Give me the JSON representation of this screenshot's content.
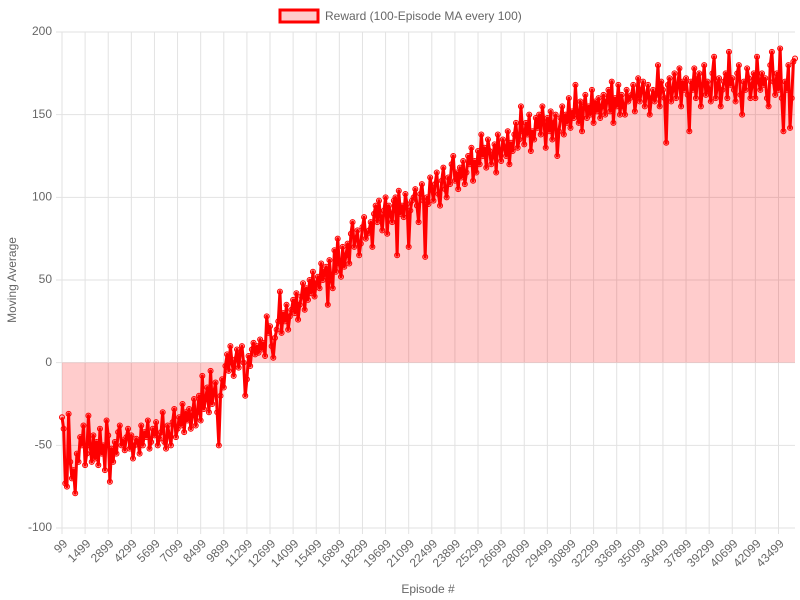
{
  "chart_data": {
    "type": "line",
    "legend_label": "Reward (100-Episode MA every 100)",
    "x_label": "Episode #",
    "y_label": "Moving Average",
    "color": "#ff0000",
    "fill_color": "rgba(255,0,0,0.2)",
    "fill": "origin",
    "grid": true,
    "legend": "top",
    "ylim": [
      -100,
      200
    ],
    "yticks": [
      -100,
      -50,
      0,
      50,
      100,
      150,
      200
    ],
    "categories": [
      "99",
      null,
      null,
      null,
      null,
      null,
      null,
      null,
      null,
      null,
      null,
      null,
      null,
      null,
      "1499",
      null,
      null,
      null,
      null,
      null,
      null,
      null,
      null,
      null,
      null,
      null,
      null,
      null,
      "2899",
      null,
      null,
      null,
      null,
      null,
      null,
      null,
      null,
      null,
      null,
      null,
      null,
      null,
      "4299",
      null,
      null,
      null,
      null,
      null,
      null,
      null,
      null,
      null,
      null,
      null,
      null,
      null,
      "5699",
      null,
      null,
      null,
      null,
      null,
      null,
      null,
      null,
      null,
      null,
      null,
      null,
      null,
      "7099",
      null,
      null,
      null,
      null,
      null,
      null,
      null,
      null,
      null,
      null,
      null,
      null,
      null,
      "8499",
      null,
      null,
      null,
      null,
      null,
      null,
      null,
      null,
      null,
      null,
      null,
      null,
      null,
      "9899",
      null,
      null,
      null,
      null,
      null,
      null,
      null,
      null,
      null,
      null,
      null,
      null,
      null,
      "11299",
      null,
      null,
      null,
      null,
      null,
      null,
      null,
      null,
      null,
      null,
      null,
      null,
      null,
      "12699",
      null,
      null,
      null,
      null,
      null,
      null,
      null,
      null,
      null,
      null,
      null,
      null,
      null,
      "14099",
      null,
      null,
      null,
      null,
      null,
      null,
      null,
      null,
      null,
      null,
      null,
      null,
      null,
      "15499",
      null,
      null,
      null,
      null,
      null,
      null,
      null,
      null,
      null,
      null,
      null,
      null,
      null,
      "16899",
      null,
      null,
      null,
      null,
      null,
      null,
      null,
      null,
      null,
      null,
      null,
      null,
      null,
      "18299",
      null,
      null,
      null,
      null,
      null,
      null,
      null,
      null,
      null,
      null,
      null,
      null,
      null,
      "19699",
      null,
      null,
      null,
      null,
      null,
      null,
      null,
      null,
      null,
      null,
      null,
      null,
      null,
      "21099",
      null,
      null,
      null,
      null,
      null,
      null,
      null,
      null,
      null,
      null,
      null,
      null,
      null,
      "22499",
      null,
      null,
      null,
      null,
      null,
      null,
      null,
      null,
      null,
      null,
      null,
      null,
      null,
      "23899",
      null,
      null,
      null,
      null,
      null,
      null,
      null,
      null,
      null,
      null,
      null,
      null,
      null,
      "25299",
      null,
      null,
      null,
      null,
      null,
      null,
      null,
      null,
      null,
      null,
      null,
      null,
      null,
      "26699",
      null,
      null,
      null,
      null,
      null,
      null,
      null,
      null,
      null,
      null,
      null,
      null,
      null,
      "28099",
      null,
      null,
      null,
      null,
      null,
      null,
      null,
      null,
      null,
      null,
      null,
      null,
      null,
      "29499",
      null,
      null,
      null,
      null,
      null,
      null,
      null,
      null,
      null,
      null,
      null,
      null,
      null,
      "30899",
      null,
      null,
      null,
      null,
      null,
      null,
      null,
      null,
      null,
      null,
      null,
      null,
      null,
      "32299",
      null,
      null,
      null,
      null,
      null,
      null,
      null,
      null,
      null,
      null,
      null,
      null,
      null,
      "33699",
      null,
      null,
      null,
      null,
      null,
      null,
      null,
      null,
      null,
      null,
      null,
      null,
      null,
      "35099",
      null,
      null,
      null,
      null,
      null,
      null,
      null,
      null,
      null,
      null,
      null,
      null,
      null,
      "36499",
      null,
      null,
      null,
      null,
      null,
      null,
      null,
      null,
      null,
      null,
      null,
      null,
      null,
      "37899",
      null,
      null,
      null,
      null,
      null,
      null,
      null,
      null,
      null,
      null,
      null,
      null,
      null,
      "39299",
      null,
      null,
      null,
      null,
      null,
      null,
      null,
      null,
      null,
      null,
      null,
      null,
      null,
      "40699",
      null,
      null,
      null,
      null,
      null,
      null,
      null,
      null,
      null,
      null,
      null,
      null,
      null,
      "42099",
      null,
      null,
      null,
      null,
      null,
      null,
      null,
      null,
      null,
      null,
      null,
      null,
      null,
      "43499",
      null,
      null,
      null,
      null,
      null,
      null,
      null,
      null,
      null,
      null
    ],
    "values": [
      -33,
      -40,
      -73,
      -75,
      -31,
      -60,
      -70,
      -65,
      -79,
      -55,
      -60,
      -45,
      -50,
      -38,
      -62,
      -55,
      -32,
      -50,
      -60,
      -44,
      -58,
      -48,
      -62,
      -40,
      -55,
      -50,
      -65,
      -35,
      -44,
      -72,
      -52,
      -60,
      -48,
      -55,
      -42,
      -38,
      -50,
      -47,
      -53,
      -45,
      -40,
      -52,
      -44,
      -58,
      -50,
      -46,
      -48,
      -55,
      -38,
      -50,
      -42,
      -45,
      -35,
      -52,
      -48,
      -40,
      -44,
      -36,
      -50,
      -46,
      -42,
      -30,
      -48,
      -52,
      -38,
      -44,
      -50,
      -36,
      -28,
      -45,
      -40,
      -33,
      -38,
      -25,
      -42,
      -30,
      -35,
      -28,
      -40,
      -32,
      -22,
      -38,
      -30,
      -20,
      -35,
      -8,
      -28,
      -22,
      -15,
      -30,
      -5,
      -25,
      -18,
      -12,
      -30,
      -50,
      -20,
      -10,
      -15,
      -2,
      5,
      -5,
      10,
      0,
      -8,
      2,
      8,
      -3,
      6,
      10,
      0,
      -20,
      -10,
      4,
      -2,
      8,
      12,
      5,
      10,
      6,
      14,
      8,
      12,
      4,
      28,
      18,
      22,
      10,
      3,
      15,
      20,
      25,
      43,
      18,
      30,
      25,
      35,
      20,
      28,
      32,
      38,
      30,
      42,
      26,
      35,
      40,
      48,
      32,
      45,
      38,
      50,
      42,
      55,
      40,
      48,
      52,
      45,
      60,
      50,
      55,
      58,
      35,
      62,
      50,
      45,
      68,
      55,
      75,
      60,
      52,
      70,
      58,
      65,
      72,
      60,
      78,
      85,
      70,
      75,
      80,
      65,
      72,
      82,
      88,
      75,
      78,
      80,
      85,
      70,
      90,
      95,
      85,
      98,
      88,
      80,
      92,
      100,
      78,
      95,
      90,
      85,
      98,
      100,
      65,
      104,
      90,
      95,
      88,
      102,
      96,
      70,
      92,
      98,
      100,
      105,
      95,
      85,
      102,
      108,
      98,
      64,
      100,
      96,
      112,
      105,
      98,
      108,
      115,
      102,
      95,
      110,
      118,
      105,
      100,
      112,
      108,
      120,
      125,
      110,
      115,
      105,
      118,
      112,
      122,
      108,
      115,
      125,
      120,
      130,
      110,
      122,
      115,
      128,
      120,
      138,
      125,
      130,
      118,
      135,
      128,
      120,
      125,
      132,
      115,
      138,
      128,
      122,
      135,
      130,
      125,
      140,
      120,
      133,
      128,
      138,
      145,
      130,
      135,
      155,
      140,
      132,
      145,
      138,
      150,
      128,
      140,
      135,
      148,
      142,
      150,
      138,
      155,
      145,
      130,
      148,
      140,
      152,
      135,
      145,
      150,
      125,
      140,
      148,
      155,
      138,
      150,
      145,
      160,
      142,
      152,
      148,
      168,
      150,
      145,
      158,
      140,
      155,
      162,
      148,
      155,
      150,
      165,
      145,
      158,
      152,
      160,
      148,
      155,
      162,
      150,
      158,
      165,
      152,
      170,
      145,
      160,
      155,
      168,
      150,
      162,
      155,
      150,
      165,
      158,
      160,
      162,
      168,
      152,
      160,
      172,
      158,
      165,
      170,
      155,
      162,
      168,
      150,
      160,
      165,
      158,
      162,
      180,
      155,
      170,
      165,
      160,
      133,
      168,
      172,
      158,
      165,
      175,
      160,
      168,
      178,
      155,
      170,
      165,
      172,
      162,
      140,
      170,
      165,
      178,
      160,
      172,
      175,
      155,
      168,
      180,
      162,
      170,
      165,
      158,
      175,
      185,
      160,
      168,
      172,
      155,
      165,
      170,
      175,
      160,
      188,
      168,
      172,
      165,
      158,
      175,
      180,
      162,
      150,
      170,
      165,
      178,
      172,
      160,
      168,
      175,
      160,
      185,
      170,
      165,
      175,
      168,
      172,
      160,
      155,
      180,
      188,
      170,
      162,
      175,
      165,
      190,
      160,
      140,
      170,
      165,
      180,
      142,
      160,
      182,
      184
    ]
  }
}
